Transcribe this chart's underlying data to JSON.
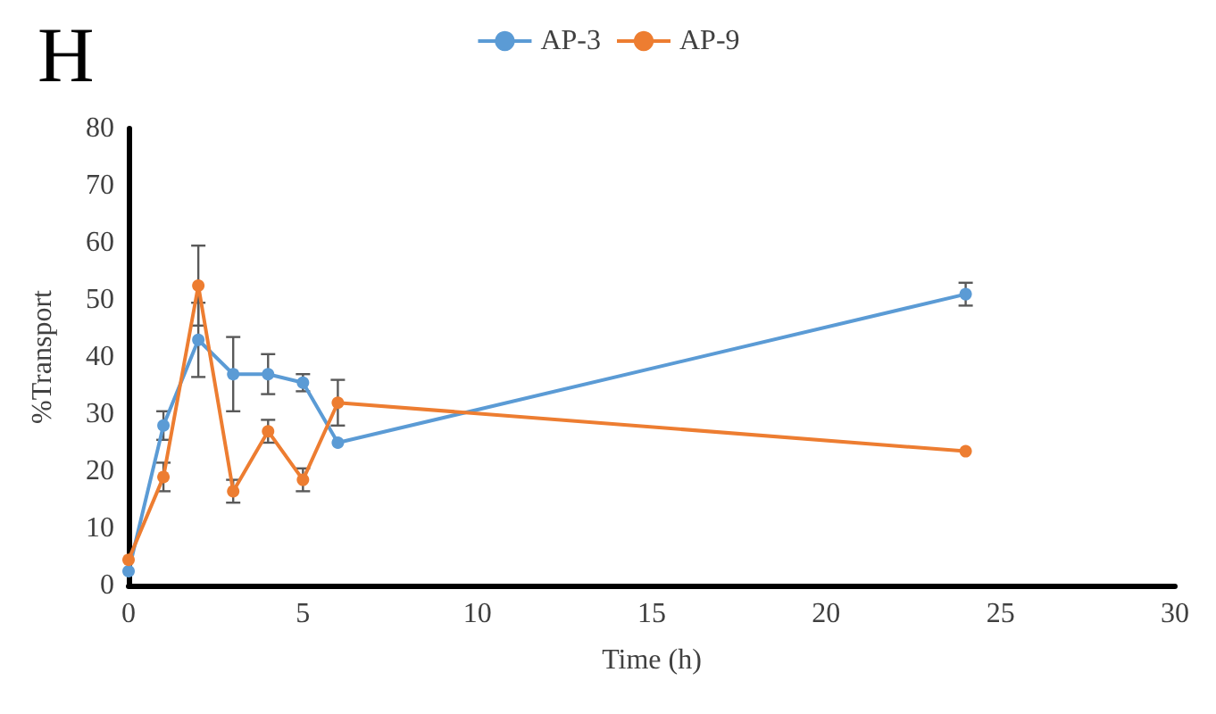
{
  "chart_data": {
    "type": "line",
    "title": "H",
    "xlabel": "Time (h)",
    "ylabel": "%Transport",
    "x": [
      0,
      1,
      2,
      3,
      4,
      5,
      6,
      24
    ],
    "series": [
      {
        "name": "AP-3",
        "color": "#5b9bd5",
        "values": [
          2.5,
          28,
          43,
          37,
          37,
          35.5,
          25,
          51
        ],
        "errors": [
          null,
          2.5,
          6.5,
          6.5,
          3.5,
          1.5,
          null,
          2
        ]
      },
      {
        "name": "AP-9",
        "color": "#ed7d31",
        "values": [
          4.5,
          19,
          52.5,
          16.5,
          27,
          18.5,
          32,
          23.5
        ],
        "errors": [
          null,
          2.5,
          7,
          2,
          2,
          2,
          4,
          null
        ]
      }
    ],
    "xlim": [
      0,
      30
    ],
    "xticks": [
      0,
      5,
      10,
      15,
      20,
      25,
      30
    ],
    "ylim": [
      0,
      80
    ],
    "yticks": [
      0,
      10,
      20,
      30,
      40,
      50,
      60,
      70,
      80
    ],
    "grid": false,
    "legend": "top",
    "marker": "circle",
    "line_style": "solid"
  }
}
